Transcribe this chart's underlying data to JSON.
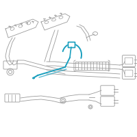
{
  "bg_color": "#ffffff",
  "line_color": "#999999",
  "line_color2": "#bbbbbb",
  "highlight_color": "#1a9fbe",
  "figsize": [
    2.0,
    2.0
  ],
  "dpi": 100
}
